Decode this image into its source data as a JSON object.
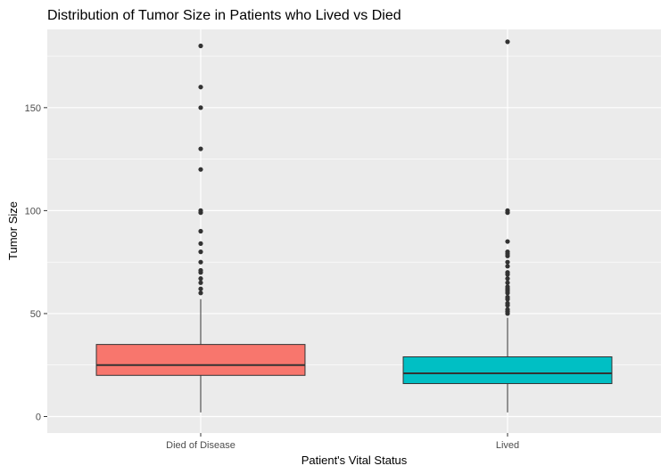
{
  "chart_data": {
    "type": "boxplot",
    "title": "Distribution of Tumor Size in Patients who Lived vs Died",
    "xlabel": "Patient's Vital Status",
    "ylabel": "Tumor Size",
    "ylim": [
      -8,
      188
    ],
    "yticks": [
      0,
      50,
      100,
      150
    ],
    "grid": true,
    "legend": "none",
    "categories": [
      "Died of Disease",
      "Lived"
    ],
    "boxes": [
      {
        "category": "Died of Disease",
        "fill": "#F8766D",
        "min": 2,
        "q1": 20,
        "median": 25,
        "q3": 35,
        "whisker_high": 57,
        "outliers": [
          60,
          62,
          65,
          67,
          70,
          71,
          75,
          80,
          84,
          90,
          99,
          100,
          120,
          130,
          150,
          160,
          180
        ]
      },
      {
        "category": "Lived",
        "fill": "#00BFC4",
        "min": 2,
        "q1": 16,
        "median": 21,
        "q3": 29,
        "whisker_high": 48,
        "outliers": [
          50,
          51,
          52,
          54,
          55,
          57,
          58,
          60,
          61,
          62,
          63,
          65,
          67,
          69,
          70,
          73,
          75,
          78,
          79,
          80,
          85,
          99,
          100,
          182
        ]
      }
    ]
  }
}
